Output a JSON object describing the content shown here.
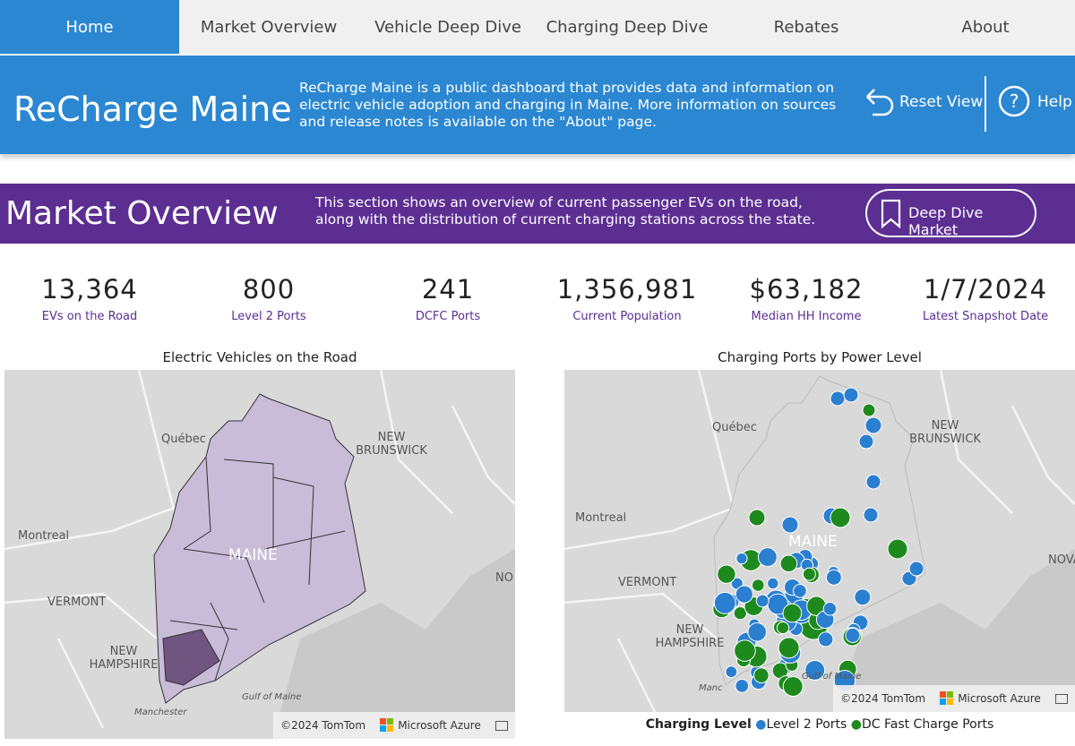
{
  "nav": {
    "tabs": [
      "Home",
      "Market Overview",
      "Vehicle Deep Dive",
      "Charging Deep Dive",
      "Rebates",
      "About"
    ]
  },
  "header": {
    "title": "ReCharge Maine",
    "description": "ReCharge Maine is a public dashboard that provides data and information on electric vehicle adoption and charging in Maine. More information on sources and release notes is available on the \"About\" page.",
    "reset": "Reset View",
    "help": "Help"
  },
  "section": {
    "title": "Market Overview",
    "description": "This section shows an overview of current passenger EVs on the road, along with the distribution of current charging stations across the state.",
    "button": "Deep Dive Market"
  },
  "kpis": [
    {
      "value": "13,364",
      "label": "EVs on the Road"
    },
    {
      "value": "800",
      "label": "Level 2 Ports"
    },
    {
      "value": "241",
      "label": "DCFC Ports"
    },
    {
      "value": "1,356,981",
      "label": "Current Population"
    },
    {
      "value": "$63,182",
      "label": "Median HH Income"
    },
    {
      "value": "1/7/2024",
      "label": "Latest Snapshot Date"
    }
  ],
  "maps": [
    {
      "title": "Electric Vehicles on the Road",
      "labels": [
        "Québec",
        "NEW BRUNSWICK",
        "Montreal",
        "MAINE",
        "VERMONT",
        "NEW HAMPSHIRE",
        "NO",
        "Gulf of Maine",
        "Manchester"
      ],
      "attribution": "©2024 TomTom",
      "provider": "Microsoft Azure"
    },
    {
      "title": "Charging Ports by Power Level",
      "labels": [
        "Québec",
        "NEW BRUNSWICK",
        "Montreal",
        "MAINE",
        "VERMONT",
        "NEW HAMPSHIRE",
        "NOVA",
        "Gulf of Maine",
        "Manc"
      ],
      "attribution": "©2024 TomTom",
      "provider": "Microsoft Azure"
    }
  ],
  "legend": {
    "title": "Charging Level",
    "items": [
      "Level 2 Ports",
      "DC Fast Charge Ports"
    ]
  }
}
